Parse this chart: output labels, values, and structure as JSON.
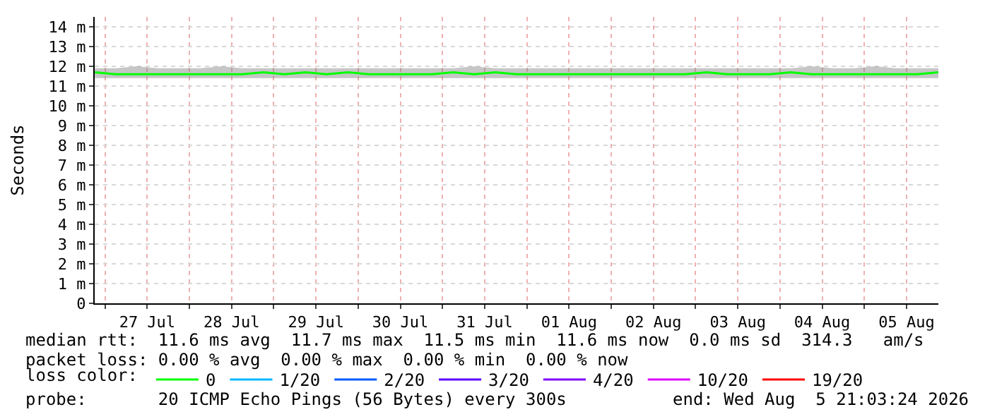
{
  "chart_data": {
    "type": "line",
    "ylabel": "Seconds",
    "legend_title": "loss color:",
    "legend": "bottom",
    "grid": true,
    "marker": "none",
    "line_style": "solid",
    "x": [
      "2026-07-26T21:03",
      "2026-07-27T03:03",
      "2026-07-27T09:03",
      "2026-07-27T15:03",
      "2026-07-27T21:03",
      "2026-07-28T03:03",
      "2026-07-28T09:03",
      "2026-07-28T15:03",
      "2026-07-28T21:03",
      "2026-07-29T03:03",
      "2026-07-29T09:03",
      "2026-07-29T15:03",
      "2026-07-29T21:03",
      "2026-07-30T03:03",
      "2026-07-30T09:03",
      "2026-07-30T15:03",
      "2026-07-30T21:03",
      "2026-07-31T03:03",
      "2026-07-31T09:03",
      "2026-07-31T15:03",
      "2026-07-31T21:03",
      "2026-08-01T03:03",
      "2026-08-01T09:03",
      "2026-08-01T15:03",
      "2026-08-01T21:03",
      "2026-08-02T03:03",
      "2026-08-02T09:03",
      "2026-08-02T15:03",
      "2026-08-02T21:03",
      "2026-08-03T03:03",
      "2026-08-03T09:03",
      "2026-08-03T15:03",
      "2026-08-03T21:03",
      "2026-08-04T03:03",
      "2026-08-04T09:03",
      "2026-08-04T15:03",
      "2026-08-04T21:03",
      "2026-08-05T03:03",
      "2026-08-05T09:03",
      "2026-08-05T15:03",
      "2026-08-05T21:03"
    ],
    "series": [
      {
        "name": "0",
        "color": "#00ff00",
        "values": [
          11.7,
          11.6,
          11.6,
          11.6,
          11.6,
          11.6,
          11.6,
          11.6,
          11.7,
          11.6,
          11.7,
          11.6,
          11.7,
          11.6,
          11.6,
          11.6,
          11.6,
          11.7,
          11.6,
          11.7,
          11.6,
          11.6,
          11.6,
          11.6,
          11.6,
          11.6,
          11.6,
          11.6,
          11.6,
          11.7,
          11.6,
          11.6,
          11.6,
          11.7,
          11.6,
          11.6,
          11.6,
          11.6,
          11.6,
          11.6,
          11.7
        ],
        "lower": [
          11.4,
          11.4,
          11.4,
          11.4,
          11.4,
          11.4,
          11.4,
          11.4,
          11.4,
          11.4,
          11.4,
          11.4,
          11.4,
          11.4,
          11.4,
          11.4,
          11.4,
          11.4,
          11.4,
          11.4,
          11.4,
          11.4,
          11.4,
          11.4,
          11.4,
          11.4,
          11.4,
          11.4,
          11.4,
          11.4,
          11.4,
          11.4,
          11.4,
          11.4,
          11.4,
          11.4,
          11.4,
          11.4,
          11.4,
          11.4,
          11.4
        ],
        "upper": [
          11.9,
          11.9,
          12,
          11.9,
          11.9,
          11.9,
          12,
          11.9,
          11.9,
          11.9,
          11.9,
          11.9,
          11.9,
          11.9,
          11.9,
          11.9,
          11.9,
          11.9,
          12,
          11.9,
          11.9,
          11.9,
          11.9,
          11.9,
          11.9,
          11.9,
          11.9,
          11.9,
          11.9,
          11.9,
          11.9,
          11.9,
          11.9,
          11.9,
          12,
          11.9,
          11.9,
          12,
          11.9,
          11.9,
          11.9
        ]
      },
      {
        "name": "1/20",
        "color": "#00b8ff",
        "values": [
          null,
          null,
          null,
          null,
          null,
          null,
          null,
          null,
          null,
          null,
          null,
          null,
          null,
          null,
          null,
          null,
          null,
          null,
          null,
          null,
          null,
          null,
          null,
          null,
          null,
          null,
          null,
          null,
          null,
          null,
          null,
          null,
          null,
          null,
          null,
          null,
          null,
          null,
          null,
          null,
          null
        ]
      },
      {
        "name": "2/20",
        "color": "#0059ff",
        "values": [
          null,
          null,
          null,
          null,
          null,
          null,
          null,
          null,
          null,
          null,
          null,
          null,
          null,
          null,
          null,
          null,
          null,
          null,
          null,
          null,
          null,
          null,
          null,
          null,
          null,
          null,
          null,
          null,
          null,
          null,
          null,
          null,
          null,
          null,
          null,
          null,
          null,
          null,
          null,
          null,
          null
        ]
      },
      {
        "name": "3/20",
        "color": "#5e00ff",
        "values": [
          null,
          null,
          null,
          null,
          null,
          null,
          null,
          null,
          null,
          null,
          null,
          null,
          null,
          null,
          null,
          null,
          null,
          null,
          null,
          null,
          null,
          null,
          null,
          null,
          null,
          null,
          null,
          null,
          null,
          null,
          null,
          null,
          null,
          null,
          null,
          null,
          null,
          null,
          null,
          null,
          null
        ]
      },
      {
        "name": "4/20",
        "color": "#7e00ff",
        "values": [
          null,
          null,
          null,
          null,
          null,
          null,
          null,
          null,
          null,
          null,
          null,
          null,
          null,
          null,
          null,
          null,
          null,
          null,
          null,
          null,
          null,
          null,
          null,
          null,
          null,
          null,
          null,
          null,
          null,
          null,
          null,
          null,
          null,
          null,
          null,
          null,
          null,
          null,
          null,
          null,
          null
        ]
      },
      {
        "name": "10/20",
        "color": "#dd00ff",
        "values": [
          null,
          null,
          null,
          null,
          null,
          null,
          null,
          null,
          null,
          null,
          null,
          null,
          null,
          null,
          null,
          null,
          null,
          null,
          null,
          null,
          null,
          null,
          null,
          null,
          null,
          null,
          null,
          null,
          null,
          null,
          null,
          null,
          null,
          null,
          null,
          null,
          null,
          null,
          null,
          null,
          null
        ]
      },
      {
        "name": "19/20",
        "color": "#ff0000",
        "values": [
          null,
          null,
          null,
          null,
          null,
          null,
          null,
          null,
          null,
          null,
          null,
          null,
          null,
          null,
          null,
          null,
          null,
          null,
          null,
          null,
          null,
          null,
          null,
          null,
          null,
          null,
          null,
          null,
          null,
          null,
          null,
          null,
          null,
          null,
          null,
          null,
          null,
          null,
          null,
          null,
          null
        ]
      }
    ],
    "xlim": [
      "2026-07-26T21:03",
      "2026-08-05T21:03"
    ],
    "xticks": [
      {
        "value": "2026-07-27T00:00",
        "label": null
      },
      {
        "value": "2026-07-27T12:00",
        "label": "27 Jul"
      },
      {
        "value": "2026-07-28T00:00",
        "label": null
      },
      {
        "value": "2026-07-28T12:00",
        "label": "28 Jul"
      },
      {
        "value": "2026-07-29T00:00",
        "label": null
      },
      {
        "value": "2026-07-29T12:00",
        "label": "29 Jul"
      },
      {
        "value": "2026-07-30T00:00",
        "label": null
      },
      {
        "value": "2026-07-30T12:00",
        "label": "30 Jul"
      },
      {
        "value": "2026-07-31T00:00",
        "label": null
      },
      {
        "value": "2026-07-31T12:00",
        "label": "31 Jul"
      },
      {
        "value": "2026-08-01T00:00",
        "label": null
      },
      {
        "value": "2026-08-01T12:00",
        "label": "01 Aug"
      },
      {
        "value": "2026-08-02T00:00",
        "label": null
      },
      {
        "value": "2026-08-02T12:00",
        "label": "02 Aug"
      },
      {
        "value": "2026-08-03T00:00",
        "label": null
      },
      {
        "value": "2026-08-03T12:00",
        "label": "03 Aug"
      },
      {
        "value": "2026-08-04T00:00",
        "label": null
      },
      {
        "value": "2026-08-04T12:00",
        "label": "04 Aug"
      },
      {
        "value": "2026-08-05T00:00",
        "label": null
      },
      {
        "value": "2026-08-05T12:00",
        "label": "05 Aug"
      }
    ],
    "ylim": [
      0,
      14.5
    ],
    "yticks": [
      0,
      {
        "value": 1,
        "label": "1 m"
      },
      {
        "value": 2,
        "label": "2 m"
      },
      {
        "value": 3,
        "label": "3 m"
      },
      {
        "value": 4,
        "label": "4 m"
      },
      {
        "value": 5,
        "label": "5 m"
      },
      {
        "value": 6,
        "label": "6 m"
      },
      {
        "value": 7,
        "label": "7 m"
      },
      {
        "value": 8,
        "label": "8 m"
      },
      {
        "value": 9,
        "label": "9 m"
      },
      {
        "value": 10,
        "label": "10 m"
      },
      {
        "value": 11,
        "label": "11 m"
      },
      {
        "value": 12,
        "label": "12 m"
      },
      {
        "value": 13,
        "label": "13 m"
      },
      {
        "value": 14,
        "label": "14 m"
      }
    ],
    "annotations": [
      "median rtt:  11.6 ms avg  11.7 ms max  11.5 ms min  11.6 ms now  0.0 ms sd  314.3   am/s",
      "packet loss: 0.00 % avg  0.00 % max  0.00 % min  0.00 % now",
      "probe:       20 ICMP Echo Pings (56 Bytes) every 300s",
      "end: Wed Aug  5 21:03:24 2026"
    ]
  }
}
